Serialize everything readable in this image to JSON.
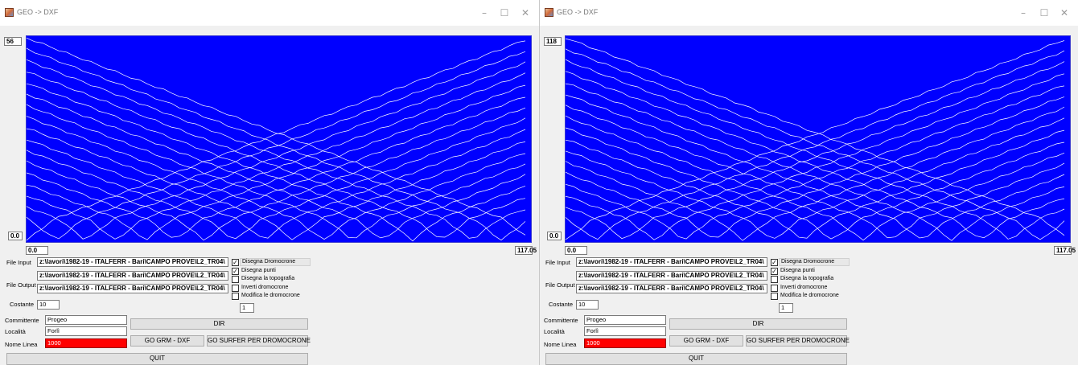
{
  "title": "GEO -> DXF",
  "controls": {
    "minimize": "–",
    "maximize": "☐",
    "close": "✕"
  },
  "colors": {
    "plot_bg": "#0000ff",
    "curve": "#ffffff",
    "nome_linea_bg": "#ff0000"
  },
  "windows": [
    {
      "y_top": "56",
      "y_bottom": "0.0",
      "x_left": "0.0",
      "x_right": "117.05",
      "labels": {
        "file_input": "File Input",
        "file_output": "File Output",
        "costante": "Costante",
        "committente": "Committente",
        "localita": "Località",
        "nome_linea": "Nome Linea"
      },
      "file_input": "z:\\lavori\\1982-19 - ITALFERR - Bari\\CAMPO PROVE\\L2_TR04\\",
      "file_output_1": "z:\\lavori\\1982-19 - ITALFERR - Bari\\CAMPO PROVE\\L2_TR04\\",
      "file_output_2": "z:\\lavori\\1982-19 - ITALFERR - Bari\\CAMPO PROVE\\L2_TR04\\",
      "costante": "10",
      "committente": "Progeo",
      "localita": "Forlì",
      "nome_linea": "1000",
      "options": [
        {
          "label": "Disegna Dromocrone",
          "checked": "✓"
        },
        {
          "label": "Disegna punti",
          "checked": "✓"
        },
        {
          "label": "Disegna la topografia",
          "checked": ""
        },
        {
          "label": "Inverti dromocrone",
          "checked": ""
        },
        {
          "label": "Modifica le dromocrone",
          "checked": ""
        }
      ],
      "modifica_value": "1",
      "buttons": {
        "dir": "DIR",
        "go_grm": "GO GRM - DXF",
        "go_surfer": "GO SURFER PER DROMOCRONE",
        "quit": "QUIT"
      }
    },
    {
      "y_top": "118",
      "y_bottom": "0.0",
      "x_left": "0.0",
      "x_right": "117.05",
      "labels": {
        "file_input": "File Input",
        "file_output": "File Output",
        "costante": "Costante",
        "committente": "Committente",
        "localita": "Località",
        "nome_linea": "Nome Linea"
      },
      "file_input": "z:\\lavori\\1982-19 - ITALFERR - Bari\\CAMPO PROVE\\L2_TR04\\",
      "file_output_1": "z:\\lavori\\1982-19 - ITALFERR - Bari\\CAMPO PROVE\\L2_TR04\\",
      "file_output_2": "z:\\lavori\\1982-19 - ITALFERR - Bari\\CAMPO PROVE\\L2_TR04\\",
      "costante": "10",
      "committente": "Progeo",
      "localita": "Forlì",
      "nome_linea": "1000",
      "options": [
        {
          "label": "Disegna Dromocrone",
          "checked": "✓"
        },
        {
          "label": "Disegna punti",
          "checked": "✓"
        },
        {
          "label": "Disegna la topografia",
          "checked": ""
        },
        {
          "label": "Inverti dromocrone",
          "checked": ""
        },
        {
          "label": "Modifica le dromocrone",
          "checked": ""
        }
      ],
      "modifica_value": "1",
      "buttons": {
        "dir": "DIR",
        "go_grm": "GO GRM - DXF",
        "go_surfer": "GO SURFER PER DROMOCRONE",
        "quit": "QUIT"
      }
    }
  ]
}
